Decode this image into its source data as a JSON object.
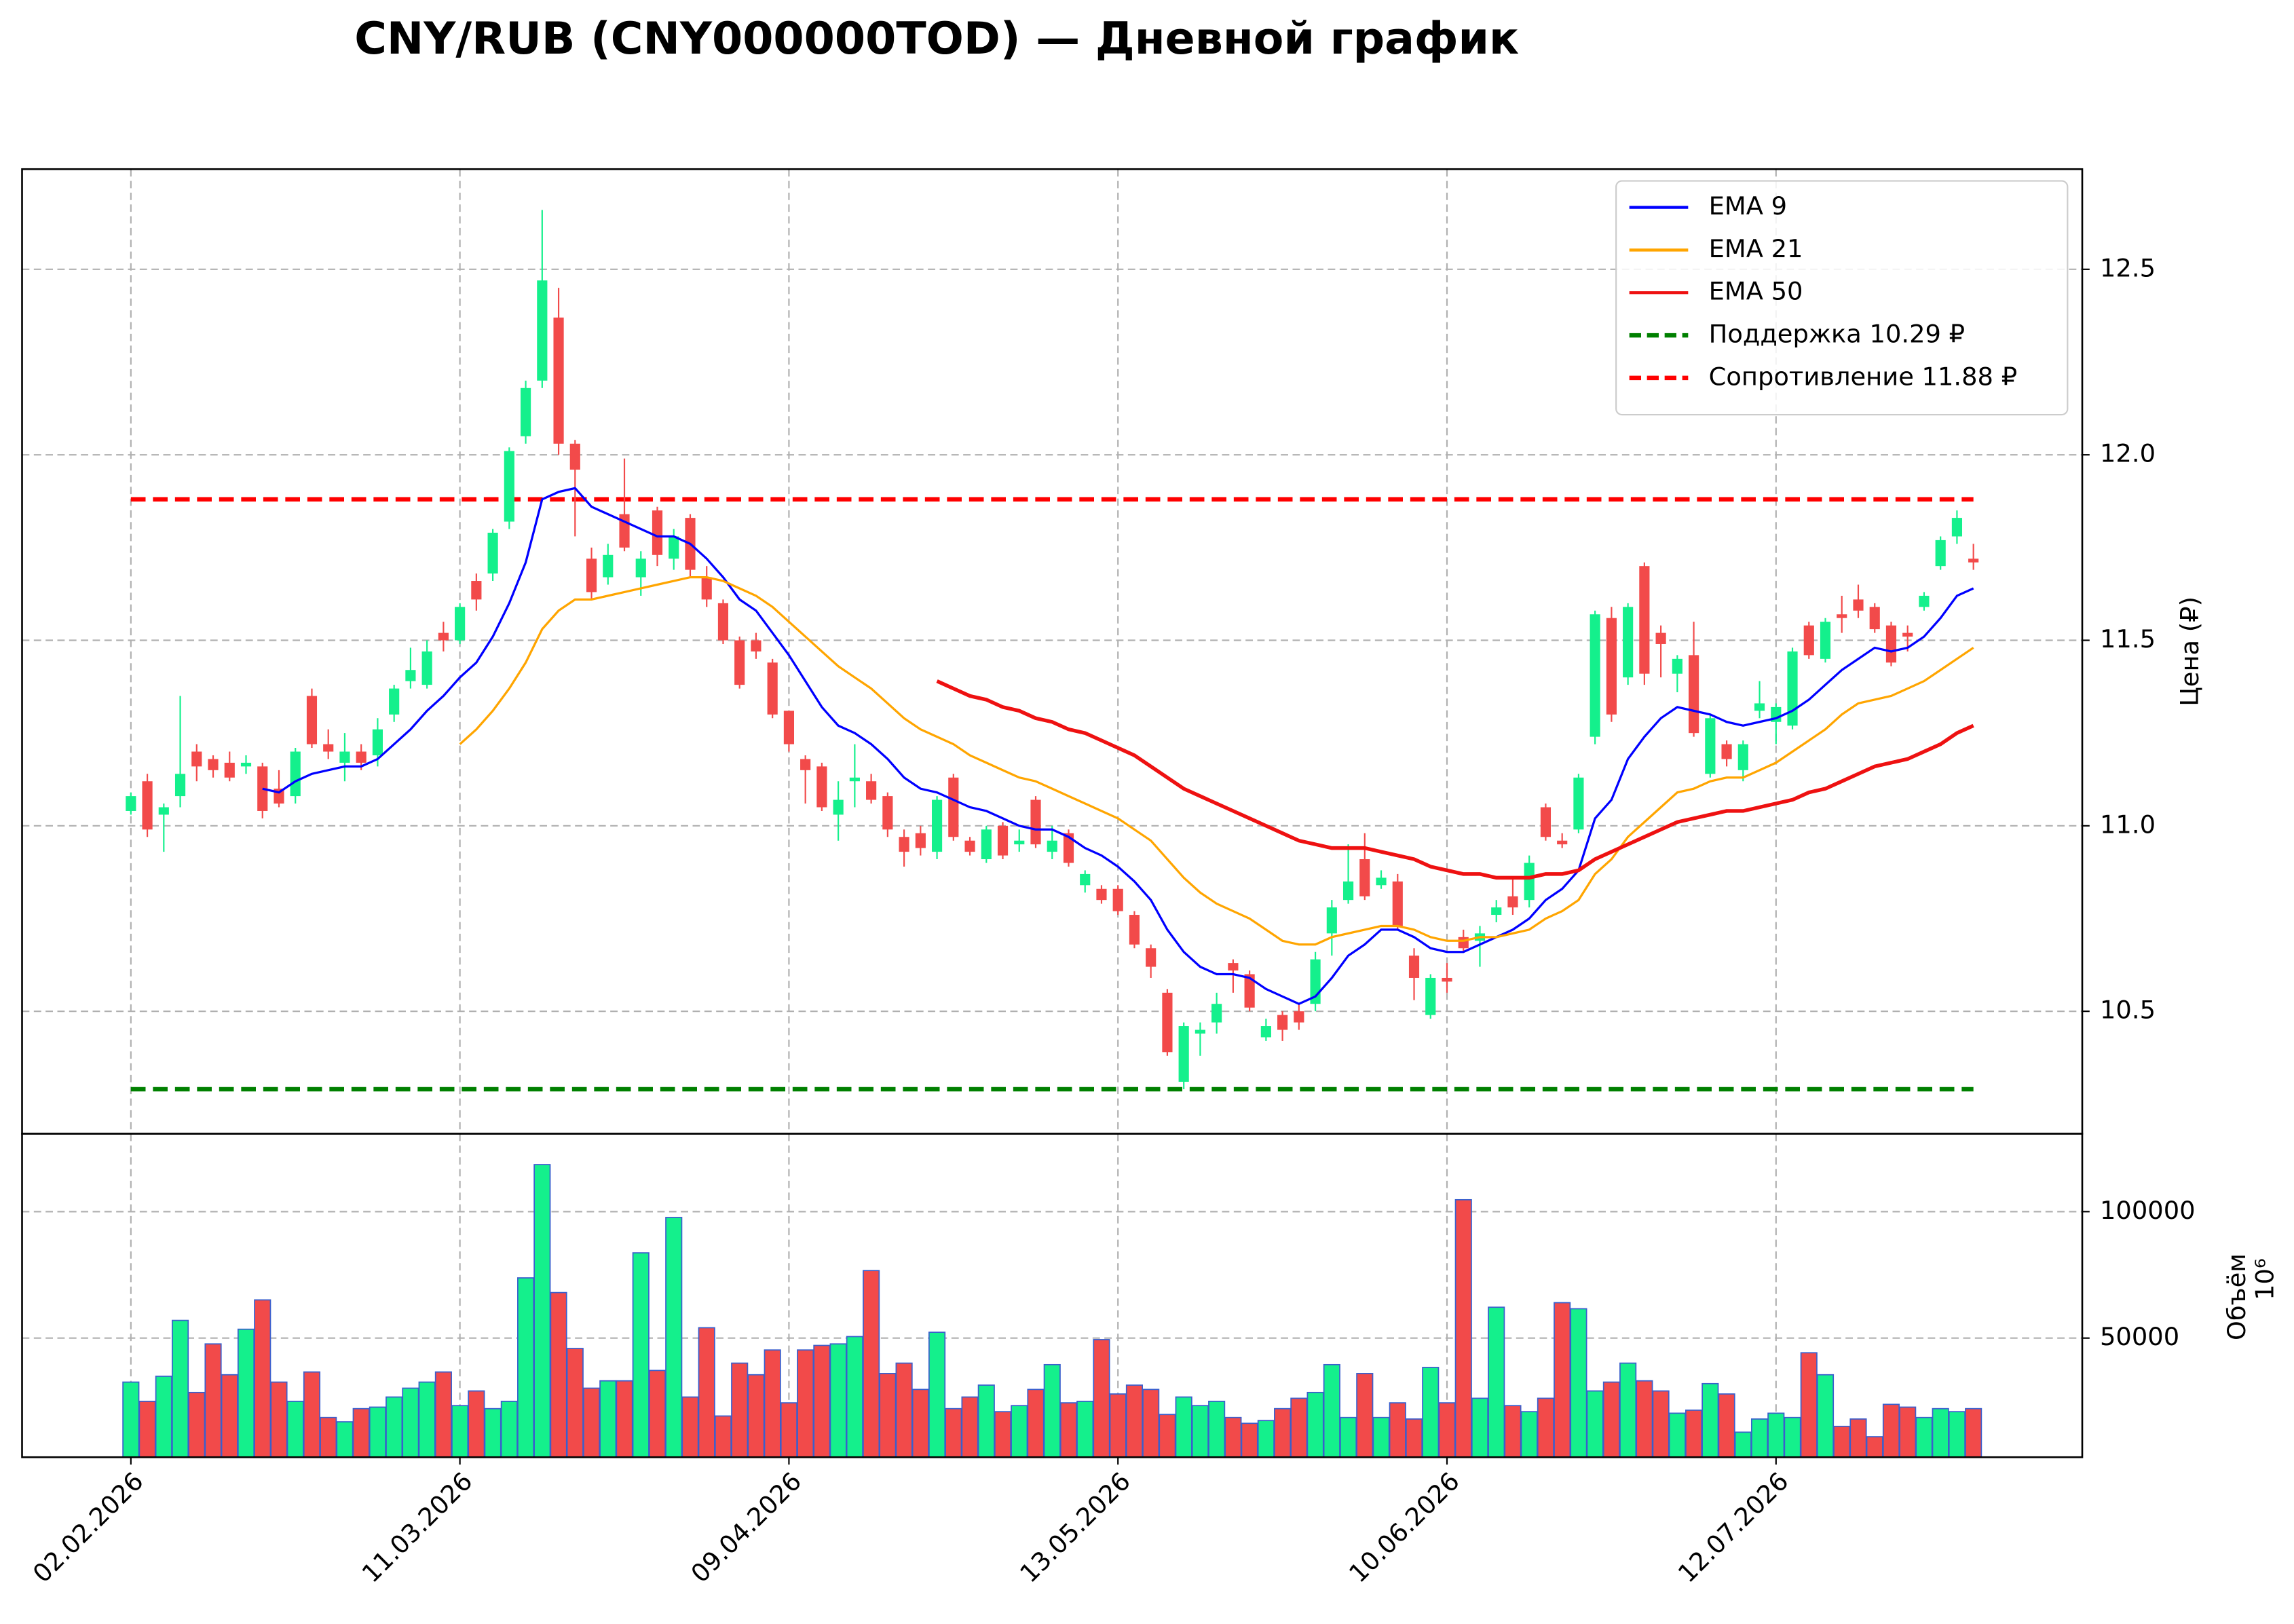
{
  "chart_data": [
    {
      "type": "candlestick",
      "title": "CNY/RUB (CNY000000TOD) — Дневной график",
      "ylabel": "Цена (₽)",
      "categories": [
        "02.02.2026",
        null,
        null,
        null,
        null,
        null,
        null,
        null,
        null,
        null,
        null,
        null,
        null,
        null,
        null,
        null,
        null,
        null,
        null,
        null,
        "11.03.2026",
        null,
        null,
        null,
        null,
        null,
        null,
        null,
        null,
        null,
        null,
        null,
        null,
        null,
        null,
        null,
        null,
        null,
        null,
        null,
        "09.04.2026",
        null,
        null,
        null,
        null,
        null,
        null,
        null,
        null,
        null,
        null,
        null,
        null,
        null,
        null,
        null,
        null,
        null,
        null,
        null,
        "13.05.2026",
        null,
        null,
        null,
        null,
        null,
        null,
        null,
        null,
        null,
        null,
        null,
        null,
        null,
        null,
        null,
        null,
        null,
        null,
        null,
        "10.06.2026",
        null,
        null,
        null,
        null,
        null,
        null,
        null,
        null,
        null,
        null,
        null,
        null,
        null,
        null,
        null,
        null,
        null,
        null,
        null,
        "12.07.2026",
        null,
        null,
        null,
        null,
        null,
        null,
        null,
        null,
        null,
        null,
        null,
        null
      ],
      "open": [
        11.04,
        11.12,
        11.03,
        11.08,
        11.2,
        11.18,
        11.17,
        11.16,
        11.16,
        11.1,
        11.08,
        11.35,
        11.22,
        11.17,
        11.2,
        11.19,
        11.3,
        11.39,
        11.38,
        11.52,
        11.5,
        11.66,
        11.68,
        11.82,
        12.05,
        12.2,
        12.37,
        12.03,
        11.72,
        11.67,
        11.84,
        11.67,
        11.85,
        11.72,
        11.83,
        11.67,
        11.6,
        11.5,
        11.5,
        11.44,
        11.31,
        11.18,
        11.16,
        11.03,
        11.12,
        11.12,
        11.08,
        10.97,
        10.98,
        10.93,
        11.13,
        10.96,
        10.91,
        11.0,
        10.95,
        11.07,
        10.93,
        10.98,
        10.84,
        10.83,
        10.83,
        10.76,
        10.67,
        10.55,
        10.31,
        10.44,
        10.47,
        10.63,
        10.6,
        10.43,
        10.49,
        10.5,
        10.52,
        10.71,
        10.8,
        10.91,
        10.84,
        10.85,
        10.65,
        10.49,
        10.59,
        10.7,
        10.69,
        10.76,
        10.81,
        10.8,
        11.05,
        10.96,
        10.99,
        11.24,
        11.56,
        11.4,
        11.7,
        11.52,
        11.41,
        11.46,
        11.14,
        11.22,
        11.15,
        11.31,
        11.28,
        11.27,
        11.54,
        11.45,
        11.57,
        11.61,
        11.59,
        11.54,
        11.52,
        11.59,
        11.7,
        11.78,
        11.72
      ],
      "high": [
        11.09,
        11.14,
        11.06,
        11.35,
        11.22,
        11.19,
        11.2,
        11.19,
        11.17,
        11.15,
        11.21,
        11.37,
        11.26,
        11.25,
        11.22,
        11.29,
        11.38,
        11.48,
        11.5,
        11.55,
        11.6,
        11.68,
        11.8,
        12.02,
        12.2,
        12.66,
        12.45,
        12.04,
        11.75,
        11.76,
        11.99,
        11.74,
        11.86,
        11.8,
        11.84,
        11.7,
        11.61,
        11.51,
        11.52,
        11.45,
        11.31,
        11.19,
        11.17,
        11.12,
        11.22,
        11.14,
        11.09,
        10.99,
        11.0,
        11.08,
        11.14,
        10.97,
        11.0,
        11.01,
        10.99,
        11.08,
        11.0,
        10.99,
        10.88,
        10.84,
        10.84,
        10.77,
        10.68,
        10.56,
        10.47,
        10.47,
        10.55,
        10.64,
        10.61,
        10.48,
        10.5,
        10.52,
        10.66,
        10.8,
        10.95,
        10.98,
        10.88,
        10.87,
        10.67,
        10.6,
        10.63,
        10.72,
        10.73,
        10.8,
        10.86,
        10.92,
        11.06,
        10.98,
        11.14,
        11.58,
        11.59,
        11.6,
        11.71,
        11.54,
        11.46,
        11.55,
        11.3,
        11.23,
        11.23,
        11.39,
        11.33,
        11.48,
        11.55,
        11.56,
        11.62,
        11.65,
        11.6,
        11.55,
        11.54,
        11.63,
        11.78,
        11.85,
        11.76
      ],
      "low": [
        11.03,
        10.97,
        10.93,
        11.05,
        11.12,
        11.13,
        11.12,
        11.14,
        11.02,
        11.05,
        11.06,
        11.21,
        11.18,
        11.12,
        11.15,
        11.16,
        11.28,
        11.37,
        11.37,
        11.47,
        11.49,
        11.58,
        11.66,
        11.8,
        12.03,
        12.18,
        12.0,
        11.78,
        11.61,
        11.65,
        11.74,
        11.62,
        11.7,
        11.69,
        11.67,
        11.59,
        11.49,
        11.37,
        11.45,
        11.29,
        11.2,
        11.06,
        11.04,
        10.96,
        11.05,
        11.06,
        10.97,
        10.89,
        10.92,
        10.91,
        10.96,
        10.92,
        10.9,
        10.91,
        10.93,
        10.94,
        10.91,
        10.89,
        10.82,
        10.79,
        10.76,
        10.67,
        10.59,
        10.38,
        10.29,
        10.38,
        10.44,
        10.55,
        10.5,
        10.42,
        10.42,
        10.45,
        10.5,
        10.65,
        10.79,
        10.8,
        10.83,
        10.72,
        10.53,
        10.48,
        10.55,
        10.66,
        10.62,
        10.74,
        10.76,
        10.78,
        10.96,
        10.94,
        10.98,
        11.22,
        11.28,
        11.38,
        11.38,
        11.4,
        11.36,
        11.24,
        11.13,
        11.16,
        11.12,
        11.29,
        11.22,
        11.26,
        11.45,
        11.44,
        11.52,
        11.56,
        11.52,
        11.43,
        11.47,
        11.58,
        11.69,
        11.76,
        11.69
      ],
      "close": [
        11.08,
        10.99,
        11.05,
        11.14,
        11.16,
        11.15,
        11.13,
        11.17,
        11.04,
        11.06,
        11.2,
        11.22,
        11.2,
        11.2,
        11.17,
        11.26,
        11.37,
        11.42,
        11.47,
        11.5,
        11.59,
        11.61,
        11.79,
        12.01,
        12.18,
        12.47,
        12.03,
        11.96,
        11.63,
        11.73,
        11.75,
        11.72,
        11.73,
        11.78,
        11.69,
        11.61,
        11.5,
        11.38,
        11.47,
        11.3,
        11.22,
        11.15,
        11.05,
        11.07,
        11.13,
        11.07,
        10.99,
        10.93,
        10.94,
        11.07,
        10.97,
        10.93,
        10.99,
        10.92,
        10.96,
        10.95,
        10.96,
        10.9,
        10.87,
        10.8,
        10.77,
        10.68,
        10.62,
        10.39,
        10.46,
        10.45,
        10.52,
        10.61,
        10.51,
        10.46,
        10.45,
        10.47,
        10.64,
        10.78,
        10.85,
        10.81,
        10.86,
        10.73,
        10.59,
        10.59,
        10.58,
        10.67,
        10.71,
        10.78,
        10.78,
        10.9,
        10.97,
        10.95,
        11.13,
        11.57,
        11.3,
        11.59,
        11.41,
        11.49,
        11.45,
        11.25,
        11.29,
        11.18,
        11.22,
        11.33,
        11.32,
        11.47,
        11.46,
        11.55,
        11.56,
        11.58,
        11.53,
        11.44,
        11.51,
        11.62,
        11.77,
        11.83,
        11.71
      ],
      "up_color": "#14f08c",
      "down_color": "#f24a4a",
      "series": [
        {
          "name": "EMA 9",
          "color": "#0000ff",
          "values": [
            null,
            null,
            null,
            null,
            null,
            null,
            null,
            null,
            11.1,
            11.09,
            11.12,
            11.14,
            11.15,
            11.16,
            11.16,
            11.18,
            11.22,
            11.26,
            11.31,
            11.35,
            11.4,
            11.44,
            11.51,
            11.6,
            11.71,
            11.88,
            11.9,
            11.91,
            11.86,
            11.84,
            11.82,
            11.8,
            11.78,
            11.78,
            11.76,
            11.72,
            11.67,
            11.61,
            11.58,
            11.52,
            11.46,
            11.39,
            11.32,
            11.27,
            11.25,
            11.22,
            11.18,
            11.13,
            11.1,
            11.09,
            11.07,
            11.05,
            11.04,
            11.02,
            11.0,
            10.99,
            10.99,
            10.97,
            10.94,
            10.92,
            10.89,
            10.85,
            10.8,
            10.72,
            10.66,
            10.62,
            10.6,
            10.6,
            10.59,
            10.56,
            10.54,
            10.52,
            10.54,
            10.59,
            10.65,
            10.68,
            10.72,
            10.72,
            10.7,
            10.67,
            10.66,
            10.66,
            10.68,
            10.7,
            10.72,
            10.75,
            10.8,
            10.83,
            10.88,
            11.02,
            11.07,
            11.18,
            11.24,
            11.29,
            11.32,
            11.31,
            11.3,
            11.28,
            11.27,
            11.28,
            11.29,
            11.31,
            11.34,
            11.38,
            11.42,
            11.45,
            11.48,
            11.47,
            11.48,
            11.51,
            11.56,
            11.62,
            11.64
          ]
        },
        {
          "name": "EMA 21",
          "color": "#ffa500",
          "values": [
            null,
            null,
            null,
            null,
            null,
            null,
            null,
            null,
            null,
            null,
            null,
            null,
            null,
            null,
            null,
            null,
            null,
            null,
            null,
            null,
            11.22,
            11.26,
            11.31,
            11.37,
            11.44,
            11.53,
            11.58,
            11.61,
            11.61,
            11.62,
            11.63,
            11.64,
            11.65,
            11.66,
            11.67,
            11.67,
            11.66,
            11.64,
            11.62,
            11.59,
            11.55,
            11.51,
            11.47,
            11.43,
            11.4,
            11.37,
            11.33,
            11.29,
            11.26,
            11.24,
            11.22,
            11.19,
            11.17,
            11.15,
            11.13,
            11.12,
            11.1,
            11.08,
            11.06,
            11.04,
            11.02,
            10.99,
            10.96,
            10.91,
            10.86,
            10.82,
            10.79,
            10.77,
            10.75,
            10.72,
            10.69,
            10.68,
            10.68,
            10.7,
            10.71,
            10.72,
            10.73,
            10.73,
            10.72,
            10.7,
            10.69,
            10.69,
            10.7,
            10.7,
            10.71,
            10.72,
            10.75,
            10.77,
            10.8,
            10.87,
            10.91,
            10.97,
            11.01,
            11.05,
            11.09,
            11.1,
            11.12,
            11.13,
            11.13,
            11.15,
            11.17,
            11.2,
            11.23,
            11.26,
            11.3,
            11.33,
            11.34,
            11.35,
            11.37,
            11.39,
            11.42,
            11.45,
            11.48
          ]
        },
        {
          "name": "EMA 50",
          "color": "#ee1111",
          "values": [
            null,
            null,
            null,
            null,
            null,
            null,
            null,
            null,
            null,
            null,
            null,
            null,
            null,
            null,
            null,
            null,
            null,
            null,
            null,
            null,
            null,
            null,
            null,
            null,
            null,
            null,
            null,
            null,
            null,
            null,
            null,
            null,
            null,
            null,
            null,
            null,
            null,
            null,
            null,
            null,
            null,
            null,
            null,
            null,
            null,
            null,
            null,
            null,
            null,
            11.39,
            11.37,
            11.35,
            11.34,
            11.32,
            11.31,
            11.29,
            11.28,
            11.26,
            11.25,
            11.23,
            11.21,
            11.19,
            11.16,
            11.13,
            11.1,
            11.08,
            11.06,
            11.04,
            11.02,
            11.0,
            10.98,
            10.96,
            10.95,
            10.94,
            10.94,
            10.94,
            10.93,
            10.92,
            10.91,
            10.89,
            10.88,
            10.87,
            10.87,
            10.86,
            10.86,
            10.86,
            10.87,
            10.87,
            10.88,
            10.91,
            10.93,
            10.95,
            10.97,
            10.99,
            11.01,
            11.02,
            11.03,
            11.04,
            11.04,
            11.05,
            11.06,
            11.07,
            11.09,
            11.1,
            11.12,
            11.14,
            11.16,
            11.17,
            11.18,
            11.2,
            11.22,
            11.25,
            11.27
          ]
        }
      ],
      "hlines": [
        {
          "name": "Поддержка 10.29 ₽",
          "color": "#008000",
          "value": 10.29
        },
        {
          "name": "Сопротивление 11.88 ₽",
          "color": "#ff0000",
          "value": 11.88
        }
      ],
      "ylim": [
        10.17,
        12.77
      ],
      "yticks": [
        10.5,
        {
          "value": 11,
          "label": "11.0"
        },
        11.5,
        {
          "value": 12,
          "label": "12.0"
        },
        12.5
      ],
      "grid": true,
      "legend": "upper right"
    },
    {
      "type": "bar",
      "ylabel": "Объём",
      "offset_label": "10⁶",
      "edge_color": "#3a5fcd",
      "values": [
        32600,
        25000,
        34900,
        57000,
        28500,
        47700,
        35500,
        53500,
        65100,
        32600,
        25000,
        36600,
        18600,
        16900,
        22100,
        22700,
        26700,
        30200,
        32600,
        36600,
        23300,
        29100,
        22100,
        25000,
        73800,
        118600,
        68000,
        45900,
        30200,
        33100,
        33100,
        83700,
        37200,
        97700,
        26700,
        54100,
        19200,
        40100,
        35500,
        45300,
        24400,
        45300,
        47100,
        47700,
        50600,
        76700,
        36000,
        40100,
        29700,
        52300,
        22100,
        26700,
        31400,
        20900,
        23300,
        29700,
        39500,
        24400,
        25000,
        49400,
        27900,
        31400,
        29700,
        19800,
        26700,
        23300,
        25000,
        18600,
        16300,
        17400,
        22100,
        26200,
        28500,
        39500,
        18600,
        36000,
        18600,
        24400,
        18000,
        38400,
        24400,
        104700,
        26200,
        62200,
        23300,
        20900,
        26200,
        64000,
        61600,
        29100,
        32600,
        40100,
        33100,
        29100,
        20300,
        21500,
        32000,
        27900,
        12800,
        18000,
        20300,
        18600,
        44200,
        35500,
        15100,
        18000,
        11000,
        23800,
        22700,
        18600,
        22100,
        20900,
        22100
      ],
      "ylim": [
        2900,
        130800
      ],
      "yticks": [
        50000,
        100000
      ],
      "grid": true
    }
  ]
}
